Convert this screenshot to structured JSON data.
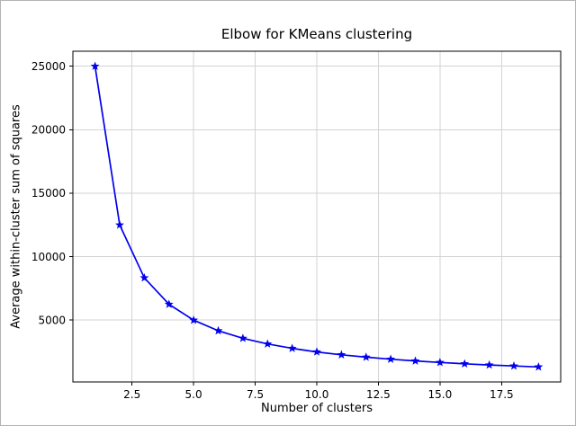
{
  "chart_data": {
    "type": "line",
    "title": "Elbow for KMeans clustering",
    "xlabel": "Number of clusters",
    "ylabel": "Average within-cluster sum of squares",
    "x": [
      1,
      2,
      3,
      4,
      5,
      6,
      7,
      8,
      9,
      10,
      11,
      12,
      13,
      14,
      15,
      16,
      17,
      18,
      19
    ],
    "y": [
      25000,
      12500,
      8333,
      6250,
      5000,
      4167,
      3571,
      3125,
      2778,
      2500,
      2273,
      2083,
      1923,
      1786,
      1667,
      1563,
      1471,
      1389,
      1316
    ],
    "line_color": "#0000ee",
    "marker": "star",
    "grid": true,
    "grid_color": "#d3d3d3",
    "xlim": [
      0.1,
      19.9
    ],
    "ylim": [
      132,
      26184
    ],
    "xticks": [
      2.5,
      5.0,
      7.5,
      10.0,
      12.5,
      15.0,
      17.5
    ],
    "xtick_labels": [
      "2.5",
      "5.0",
      "7.5",
      "10.0",
      "12.5",
      "15.0",
      "17.5"
    ],
    "yticks": [
      5000,
      10000,
      15000,
      20000,
      25000
    ],
    "ytick_labels": [
      "5000",
      "10000",
      "15000",
      "20000",
      "25000"
    ],
    "legend": "none",
    "axes_box": true
  }
}
